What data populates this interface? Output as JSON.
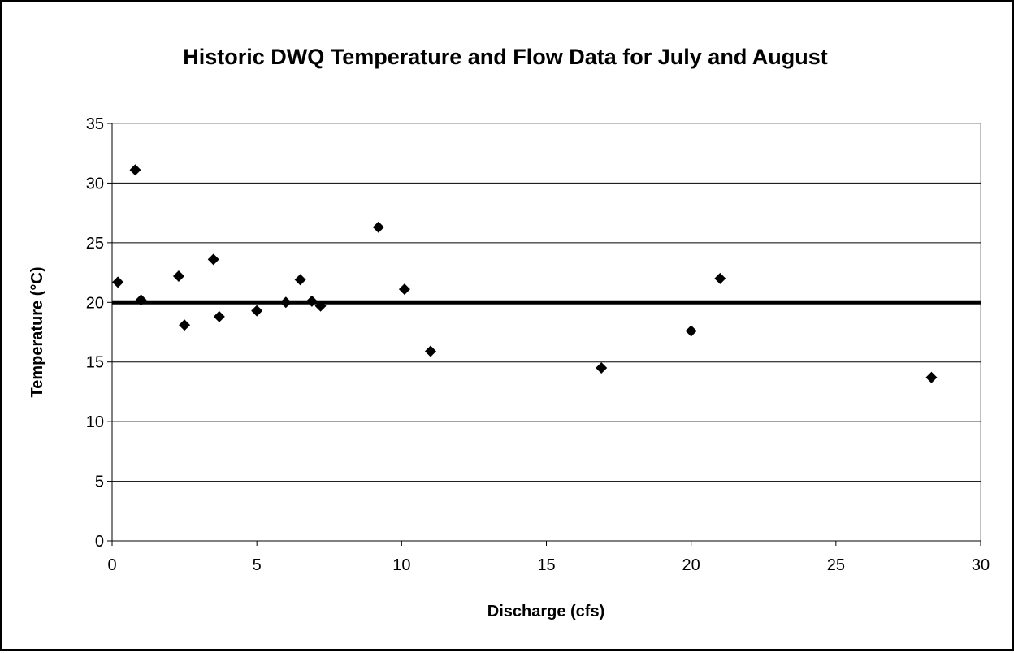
{
  "chart_data": {
    "type": "scatter",
    "title": "Historic DWQ Temperature and Flow Data for July and August",
    "xlabel": "Discharge (cfs)",
    "ylabel": "Temperature (°C)",
    "xlim": [
      0,
      30
    ],
    "ylim": [
      0,
      35
    ],
    "xticks": [
      "0",
      "5",
      "10",
      "15",
      "20",
      "25",
      "30"
    ],
    "yticks": [
      "0",
      "5",
      "10",
      "15",
      "20",
      "25",
      "30",
      "35"
    ],
    "grid": "horizontal",
    "legend": "none",
    "marker": "diamond",
    "marker_color": "#000000",
    "reference_line": {
      "y": 20,
      "color": "#000000"
    },
    "points": [
      {
        "x": 0.2,
        "y": 21.7
      },
      {
        "x": 0.8,
        "y": 31.1
      },
      {
        "x": 1.0,
        "y": 20.2
      },
      {
        "x": 2.3,
        "y": 22.2
      },
      {
        "x": 2.5,
        "y": 18.1
      },
      {
        "x": 3.5,
        "y": 23.6
      },
      {
        "x": 3.7,
        "y": 18.8
      },
      {
        "x": 5.0,
        "y": 19.3
      },
      {
        "x": 6.0,
        "y": 20.0
      },
      {
        "x": 6.5,
        "y": 21.9
      },
      {
        "x": 6.9,
        "y": 20.1
      },
      {
        "x": 7.2,
        "y": 19.7
      },
      {
        "x": 9.2,
        "y": 26.3
      },
      {
        "x": 10.1,
        "y": 21.1
      },
      {
        "x": 11.0,
        "y": 15.9
      },
      {
        "x": 16.9,
        "y": 14.5
      },
      {
        "x": 20.0,
        "y": 17.6
      },
      {
        "x": 21.0,
        "y": 22.0
      },
      {
        "x": 28.3,
        "y": 13.7
      }
    ]
  }
}
